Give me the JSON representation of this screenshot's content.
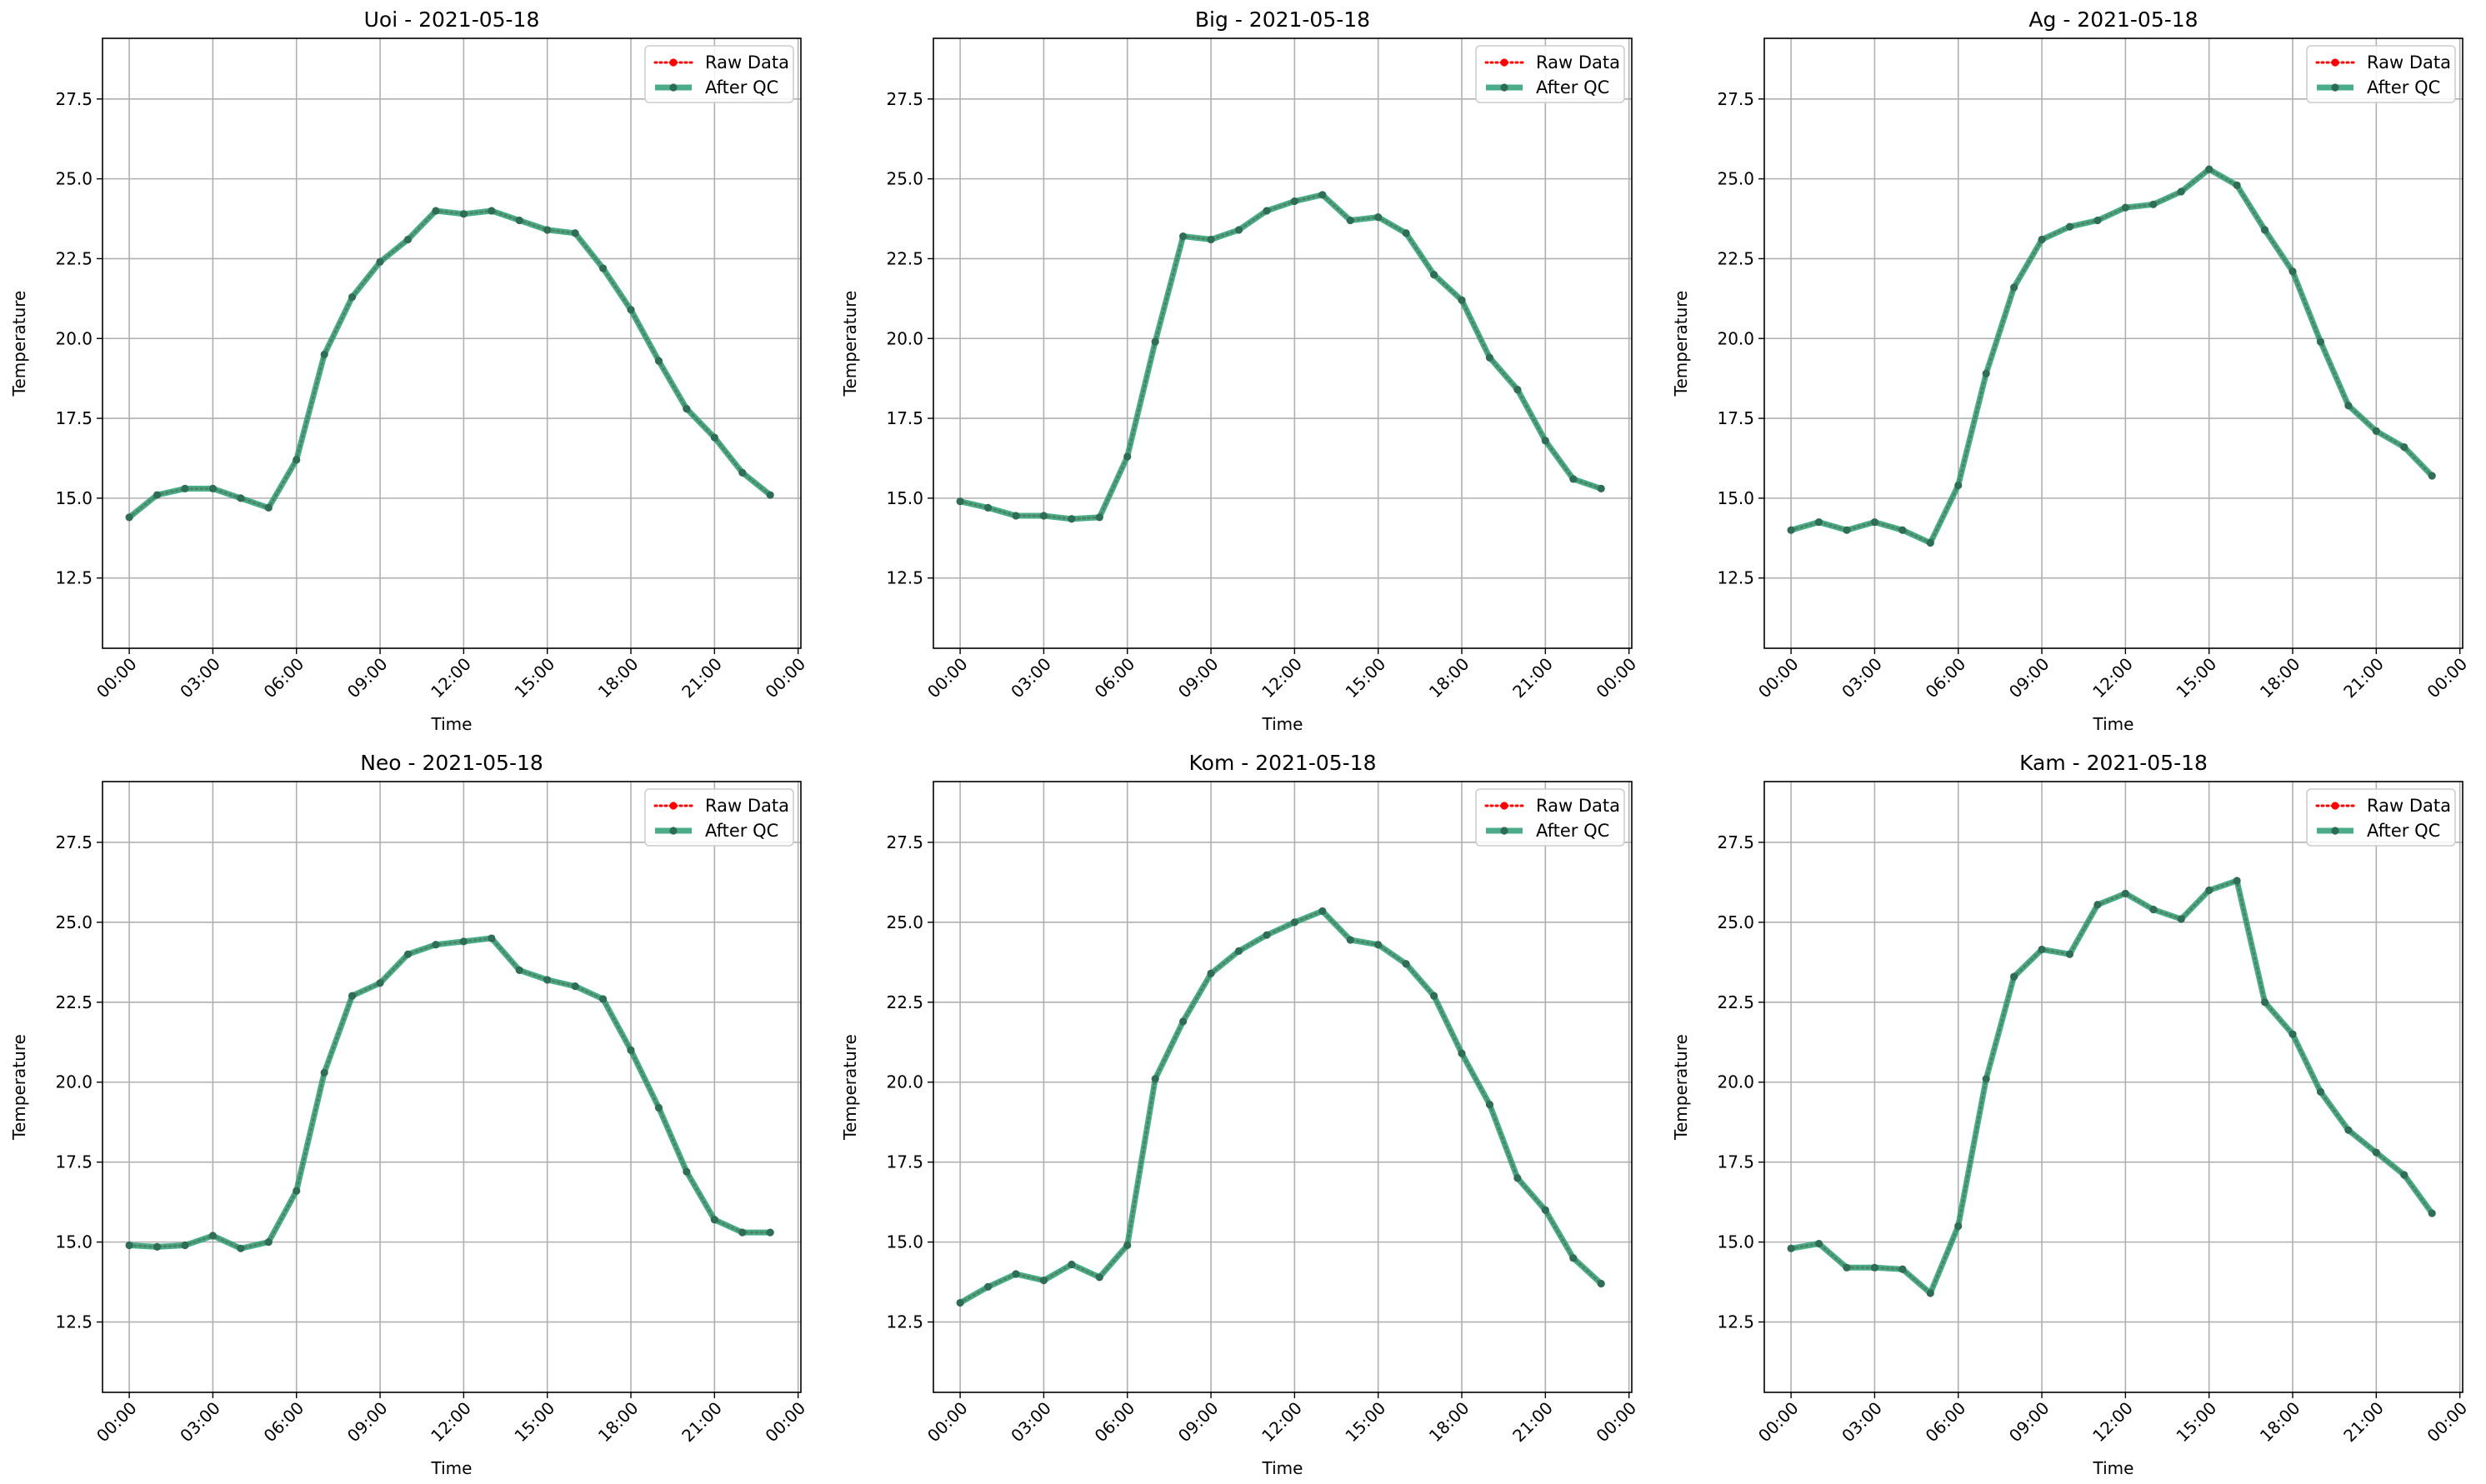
{
  "legend_labels": {
    "raw": "Raw Data",
    "qc": "After QC"
  },
  "colors": {
    "raw": "#ff0000",
    "qc": "#2a9d74",
    "grid": "#b0b0b0"
  },
  "chart_data": [
    {
      "type": "line",
      "title": "Uoi - 2021-05-18",
      "xlabel": "Time",
      "ylabel": "Temperature",
      "x_tick_labels": [
        "00:00",
        "03:00",
        "06:00",
        "09:00",
        "12:00",
        "15:00",
        "18:00",
        "21:00",
        "00:00"
      ],
      "y_tick_labels": [
        "12.5",
        "15.0",
        "17.5",
        "20.0",
        "22.5",
        "25.0",
        "27.5"
      ],
      "ylim": [
        10.3,
        29.4
      ],
      "grid": true,
      "legend": "upper right",
      "x_hours": [
        0,
        1,
        2,
        3,
        4,
        5,
        6,
        7,
        8,
        9,
        10,
        11,
        12,
        13,
        14,
        15,
        16,
        17,
        18,
        19,
        20,
        21,
        22,
        23
      ],
      "series": [
        {
          "name": "Raw Data",
          "values": [
            14.4,
            15.1,
            15.3,
            15.3,
            15.0,
            14.7,
            16.2,
            19.5,
            21.3,
            22.4,
            23.1,
            24.0,
            23.9,
            24.0,
            23.7,
            23.4,
            23.3,
            22.2,
            20.9,
            19.3,
            17.8,
            16.9,
            15.8,
            15.1
          ]
        },
        {
          "name": "After QC",
          "values": [
            14.4,
            15.1,
            15.3,
            15.3,
            15.0,
            14.7,
            16.2,
            19.5,
            21.3,
            22.4,
            23.1,
            24.0,
            23.9,
            24.0,
            23.7,
            23.4,
            23.3,
            22.2,
            20.9,
            19.3,
            17.8,
            16.9,
            15.8,
            15.1
          ]
        }
      ]
    },
    {
      "type": "line",
      "title": "Big - 2021-05-18",
      "xlabel": "Time",
      "ylabel": "Temperature",
      "x_tick_labels": [
        "00:00",
        "03:00",
        "06:00",
        "09:00",
        "12:00",
        "15:00",
        "18:00",
        "21:00",
        "00:00"
      ],
      "y_tick_labels": [
        "12.5",
        "15.0",
        "17.5",
        "20.0",
        "22.5",
        "25.0",
        "27.5"
      ],
      "ylim": [
        10.3,
        29.4
      ],
      "grid": true,
      "legend": "upper right",
      "x_hours": [
        0,
        1,
        2,
        3,
        4,
        5,
        6,
        7,
        8,
        9,
        10,
        11,
        12,
        13,
        14,
        15,
        16,
        17,
        18,
        19,
        20,
        21,
        22,
        23
      ],
      "series": [
        {
          "name": "Raw Data",
          "values": [
            14.9,
            14.7,
            14.45,
            14.45,
            14.35,
            14.4,
            16.3,
            19.9,
            23.2,
            23.1,
            23.4,
            24.0,
            24.3,
            24.5,
            23.7,
            23.8,
            23.3,
            22.0,
            21.2,
            19.4,
            18.4,
            16.8,
            15.6,
            15.3
          ]
        },
        {
          "name": "After QC",
          "values": [
            14.9,
            14.7,
            14.45,
            14.45,
            14.35,
            14.4,
            16.3,
            19.9,
            23.2,
            23.1,
            23.4,
            24.0,
            24.3,
            24.5,
            23.7,
            23.8,
            23.3,
            22.0,
            21.2,
            19.4,
            18.4,
            16.8,
            15.6,
            15.3
          ]
        }
      ]
    },
    {
      "type": "line",
      "title": "Ag - 2021-05-18",
      "xlabel": "Time",
      "ylabel": "Temperature",
      "x_tick_labels": [
        "00:00",
        "03:00",
        "06:00",
        "09:00",
        "12:00",
        "15:00",
        "18:00",
        "21:00",
        "00:00"
      ],
      "y_tick_labels": [
        "12.5",
        "15.0",
        "17.5",
        "20.0",
        "22.5",
        "25.0",
        "27.5"
      ],
      "ylim": [
        10.3,
        29.4
      ],
      "grid": true,
      "legend": "upper right",
      "x_hours": [
        0,
        1,
        2,
        3,
        4,
        5,
        6,
        7,
        8,
        9,
        10,
        11,
        12,
        13,
        14,
        15,
        16,
        17,
        18,
        19,
        20,
        21,
        22,
        23
      ],
      "series": [
        {
          "name": "Raw Data",
          "values": [
            14.0,
            14.25,
            14.0,
            14.25,
            14.0,
            13.6,
            15.4,
            18.9,
            21.6,
            23.1,
            23.5,
            23.7,
            24.1,
            24.2,
            24.6,
            25.3,
            24.8,
            23.4,
            22.1,
            19.9,
            17.9,
            17.1,
            16.6,
            15.7
          ]
        },
        {
          "name": "After QC",
          "values": [
            14.0,
            14.25,
            14.0,
            14.25,
            14.0,
            13.6,
            15.4,
            18.9,
            21.6,
            23.1,
            23.5,
            23.7,
            24.1,
            24.2,
            24.6,
            25.3,
            24.8,
            23.4,
            22.1,
            19.9,
            17.9,
            17.1,
            16.6,
            15.7
          ]
        }
      ]
    },
    {
      "type": "line",
      "title": "Neo - 2021-05-18",
      "xlabel": "Time",
      "ylabel": "Temperature",
      "x_tick_labels": [
        "00:00",
        "03:00",
        "06:00",
        "09:00",
        "12:00",
        "15:00",
        "18:00",
        "21:00",
        "00:00"
      ],
      "y_tick_labels": [
        "12.5",
        "15.0",
        "17.5",
        "20.0",
        "22.5",
        "25.0",
        "27.5"
      ],
      "ylim": [
        10.3,
        29.4
      ],
      "grid": true,
      "legend": "upper right",
      "x_hours": [
        0,
        1,
        2,
        3,
        4,
        5,
        6,
        7,
        8,
        9,
        10,
        11,
        12,
        13,
        14,
        15,
        16,
        17,
        18,
        19,
        20,
        21,
        22,
        23
      ],
      "series": [
        {
          "name": "Raw Data",
          "values": [
            14.9,
            14.85,
            14.9,
            15.2,
            14.8,
            15.0,
            16.6,
            20.3,
            22.7,
            23.1,
            24.0,
            24.3,
            24.4,
            24.5,
            23.5,
            23.2,
            23.0,
            22.6,
            21.0,
            19.2,
            17.2,
            15.7,
            15.3,
            15.3
          ]
        },
        {
          "name": "After QC",
          "values": [
            14.9,
            14.85,
            14.9,
            15.2,
            14.8,
            15.0,
            16.6,
            20.3,
            22.7,
            23.1,
            24.0,
            24.3,
            24.4,
            24.5,
            23.5,
            23.2,
            23.0,
            22.6,
            21.0,
            19.2,
            17.2,
            15.7,
            15.3,
            15.3
          ]
        }
      ]
    },
    {
      "type": "line",
      "title": "Kom - 2021-05-18",
      "xlabel": "Time",
      "ylabel": "Temperature",
      "x_tick_labels": [
        "00:00",
        "03:00",
        "06:00",
        "09:00",
        "12:00",
        "15:00",
        "18:00",
        "21:00",
        "00:00"
      ],
      "y_tick_labels": [
        "12.5",
        "15.0",
        "17.5",
        "20.0",
        "22.5",
        "25.0",
        "27.5"
      ],
      "ylim": [
        10.3,
        29.4
      ],
      "grid": true,
      "legend": "upper right",
      "x_hours": [
        0,
        1,
        2,
        3,
        4,
        5,
        6,
        7,
        8,
        9,
        10,
        11,
        12,
        13,
        14,
        15,
        16,
        17,
        18,
        19,
        20,
        21,
        22,
        23
      ],
      "series": [
        {
          "name": "Raw Data",
          "values": [
            13.1,
            13.6,
            14.0,
            13.8,
            14.3,
            13.9,
            14.9,
            20.1,
            21.9,
            23.4,
            24.1,
            24.6,
            25.0,
            25.35,
            24.45,
            24.3,
            23.7,
            22.7,
            20.9,
            19.3,
            17.0,
            16.0,
            14.5,
            13.7
          ]
        },
        {
          "name": "After QC",
          "values": [
            13.1,
            13.6,
            14.0,
            13.8,
            14.3,
            13.9,
            14.9,
            20.1,
            21.9,
            23.4,
            24.1,
            24.6,
            25.0,
            25.35,
            24.45,
            24.3,
            23.7,
            22.7,
            20.9,
            19.3,
            17.0,
            16.0,
            14.5,
            13.7
          ]
        }
      ]
    },
    {
      "type": "line",
      "title": "Kam - 2021-05-18",
      "xlabel": "Time",
      "ylabel": "Temperature",
      "x_tick_labels": [
        "00:00",
        "03:00",
        "06:00",
        "09:00",
        "12:00",
        "15:00",
        "18:00",
        "21:00",
        "00:00"
      ],
      "y_tick_labels": [
        "12.5",
        "15.0",
        "17.5",
        "20.0",
        "22.5",
        "25.0",
        "27.5"
      ],
      "ylim": [
        10.3,
        29.4
      ],
      "grid": true,
      "legend": "upper right",
      "x_hours": [
        0,
        1,
        2,
        3,
        4,
        5,
        6,
        7,
        8,
        9,
        10,
        11,
        12,
        13,
        14,
        15,
        16,
        17,
        18,
        19,
        20,
        21,
        22,
        23
      ],
      "series": [
        {
          "name": "Raw Data",
          "values": [
            14.8,
            14.95,
            14.2,
            14.2,
            14.15,
            13.4,
            15.5,
            20.1,
            23.3,
            24.15,
            24.0,
            25.55,
            25.9,
            25.4,
            25.1,
            26.0,
            26.3,
            22.5,
            21.5,
            19.7,
            18.5,
            17.8,
            17.1,
            15.9
          ]
        },
        {
          "name": "After QC",
          "values": [
            14.8,
            14.95,
            14.2,
            14.2,
            14.15,
            13.4,
            15.5,
            20.1,
            23.3,
            24.15,
            24.0,
            25.55,
            25.9,
            25.4,
            25.1,
            26.0,
            26.3,
            22.5,
            21.5,
            19.7,
            18.5,
            17.8,
            17.1,
            15.9
          ]
        }
      ]
    }
  ]
}
